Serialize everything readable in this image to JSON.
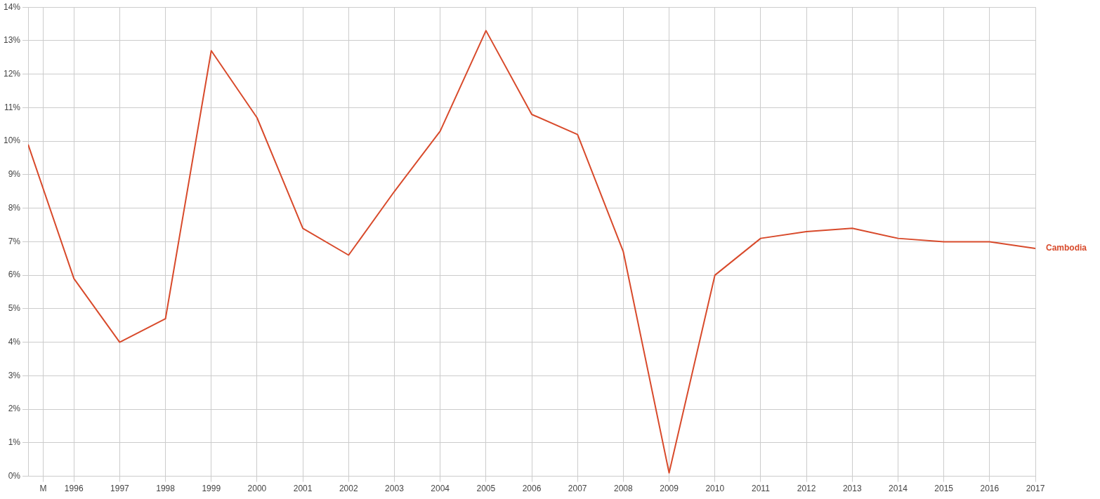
{
  "chart_data": {
    "type": "line",
    "x": [
      1995,
      1996,
      1997,
      1998,
      1999,
      2000,
      2001,
      2002,
      2003,
      2004,
      2005,
      2006,
      2007,
      2008,
      2009,
      2010,
      2011,
      2012,
      2013,
      2014,
      2015,
      2016,
      2017
    ],
    "series": [
      {
        "name": "Cambodia",
        "color": "#d84a2b",
        "values": [
          9.9,
          5.9,
          4.0,
          4.7,
          12.7,
          10.7,
          7.4,
          6.6,
          8.5,
          10.3,
          13.3,
          10.8,
          10.2,
          6.7,
          0.1,
          6.0,
          7.1,
          7.3,
          7.4,
          7.1,
          7.0,
          7.0,
          6.8
        ]
      }
    ],
    "xlim": [
      1995,
      2017
    ],
    "xticks": [
      {
        "value": 1995.33,
        "label": "M"
      },
      1996,
      1997,
      1998,
      1999,
      2000,
      2001,
      2002,
      2003,
      2004,
      2005,
      2006,
      2007,
      2008,
      2009,
      2010,
      2011,
      2012,
      2013,
      2014,
      2015,
      2016,
      2017
    ],
    "ylim": [
      0,
      14
    ],
    "yticks": [
      {
        "value": 0,
        "label": "0%"
      },
      {
        "value": 1,
        "label": "1%"
      },
      {
        "value": 2,
        "label": "2%"
      },
      {
        "value": 3,
        "label": "3%"
      },
      {
        "value": 4,
        "label": "4%"
      },
      {
        "value": 5,
        "label": "5%"
      },
      {
        "value": 6,
        "label": "6%"
      },
      {
        "value": 7,
        "label": "7%"
      },
      {
        "value": 8,
        "label": "8%"
      },
      {
        "value": 9,
        "label": "9%"
      },
      {
        "value": 10,
        "label": "10%"
      },
      {
        "value": 11,
        "label": "11%"
      },
      {
        "value": 12,
        "label": "12%"
      },
      {
        "value": 13,
        "label": "13%"
      },
      {
        "value": 14,
        "label": "14%"
      }
    ],
    "grid": true,
    "legend": false,
    "marker": "none",
    "line_style": "solid"
  }
}
